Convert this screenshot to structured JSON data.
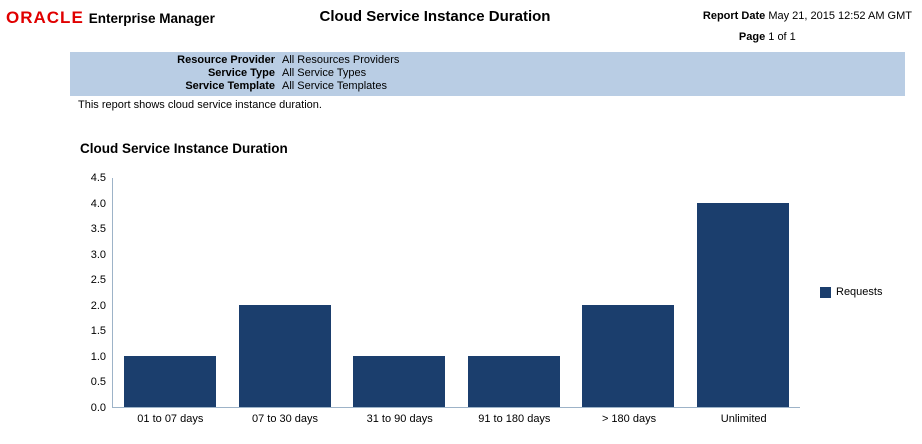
{
  "header": {
    "logo": "ORACLE",
    "app_title": "Enterprise Manager",
    "report_title": "Cloud Service Instance Duration",
    "report_date_label": "Report Date",
    "report_date": "May 21, 2015 12:52 AM GMT",
    "page_label": "Page",
    "page_value": "1 of 1"
  },
  "filters": {
    "rows": [
      {
        "label": "Resource Provider",
        "value": "All Resources Providers"
      },
      {
        "label": "Service Type",
        "value": "All Service Types"
      },
      {
        "label": "Service Template",
        "value": "All Service Templates"
      }
    ]
  },
  "description": "This report shows cloud service instance duration.",
  "chart_data": {
    "type": "bar",
    "title": "Cloud Service Instance Duration",
    "categories": [
      "01 to 07 days",
      "07 to 30 days",
      "31 to 90 days",
      "91 to 180 days",
      "> 180 days",
      "Unlimited"
    ],
    "series": [
      {
        "name": "Requests",
        "values": [
          1,
          2,
          1,
          1,
          2,
          4
        ]
      }
    ],
    "xlabel": "",
    "ylabel": "",
    "ylim": [
      0,
      4.5
    ],
    "ytick_step": 0.5,
    "grid": false,
    "legend_position": "right",
    "bar_color": "#1b3e6d"
  },
  "colors": {
    "brand_red": "#e00000",
    "band_blue": "#b9cde4",
    "bar_navy": "#1b3e6d",
    "axis_line": "#9db3c8"
  }
}
